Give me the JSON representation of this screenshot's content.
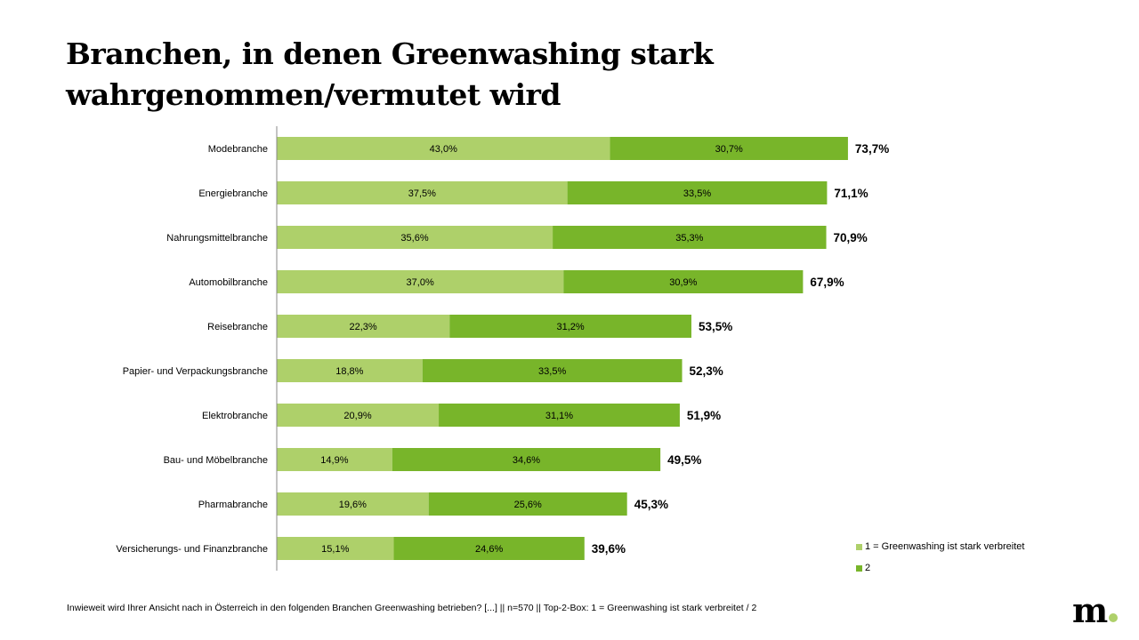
{
  "title": "Branchen, in denen Greenwashing stark wahrgenommen/vermutet wird",
  "chart_data": {
    "type": "bar",
    "orientation": "horizontal",
    "stacked": true,
    "categories": [
      "Modebranche",
      "Energiebranche",
      "Nahrungsmittelbranche",
      "Automobilbranche",
      "Reisebranche",
      "Papier- und Verpackungsbranche",
      "Elektrobranche",
      "Bau- und Möbelbranche",
      "Pharmabranche",
      "Versicherungs- und Finanzbranche"
    ],
    "series": [
      {
        "name": "1 = Greenwashing ist stark verbreitet",
        "color": "#aed06a",
        "values": [
          43.0,
          37.5,
          35.6,
          37.0,
          22.3,
          18.8,
          20.9,
          14.9,
          19.6,
          15.1
        ],
        "labels": [
          "43,0%",
          "37,5%",
          "35,6%",
          "37,0%",
          "22,3%",
          "18,8%",
          "20,9%",
          "14,9%",
          "19,6%",
          "15,1%"
        ]
      },
      {
        "name": "2",
        "color": "#78b52a",
        "values": [
          30.7,
          33.5,
          35.3,
          30.9,
          31.2,
          33.5,
          31.1,
          34.6,
          25.6,
          24.6
        ],
        "labels": [
          "30,7%",
          "33,5%",
          "35,3%",
          "30,9%",
          "31,2%",
          "33,5%",
          "31,1%",
          "34,6%",
          "25,6%",
          "24,6%"
        ]
      }
    ],
    "totals": [
      "73,7%",
      "71,1%",
      "70,9%",
      "67,9%",
      "53,5%",
      "52,3%",
      "51,9%",
      "49,5%",
      "45,3%",
      "39,6%"
    ],
    "xlim": [
      0,
      100
    ],
    "grid": false,
    "legend_position": "bottom-right"
  },
  "footnote": "Inwieweit wird Ihrer Ansicht nach in Österreich in den folgenden Branchen Greenwashing betrieben?  [...] || n=570 ||  Top-2-Box: 1 = Greenwashing ist stark verbreitet / 2",
  "logo": "m."
}
